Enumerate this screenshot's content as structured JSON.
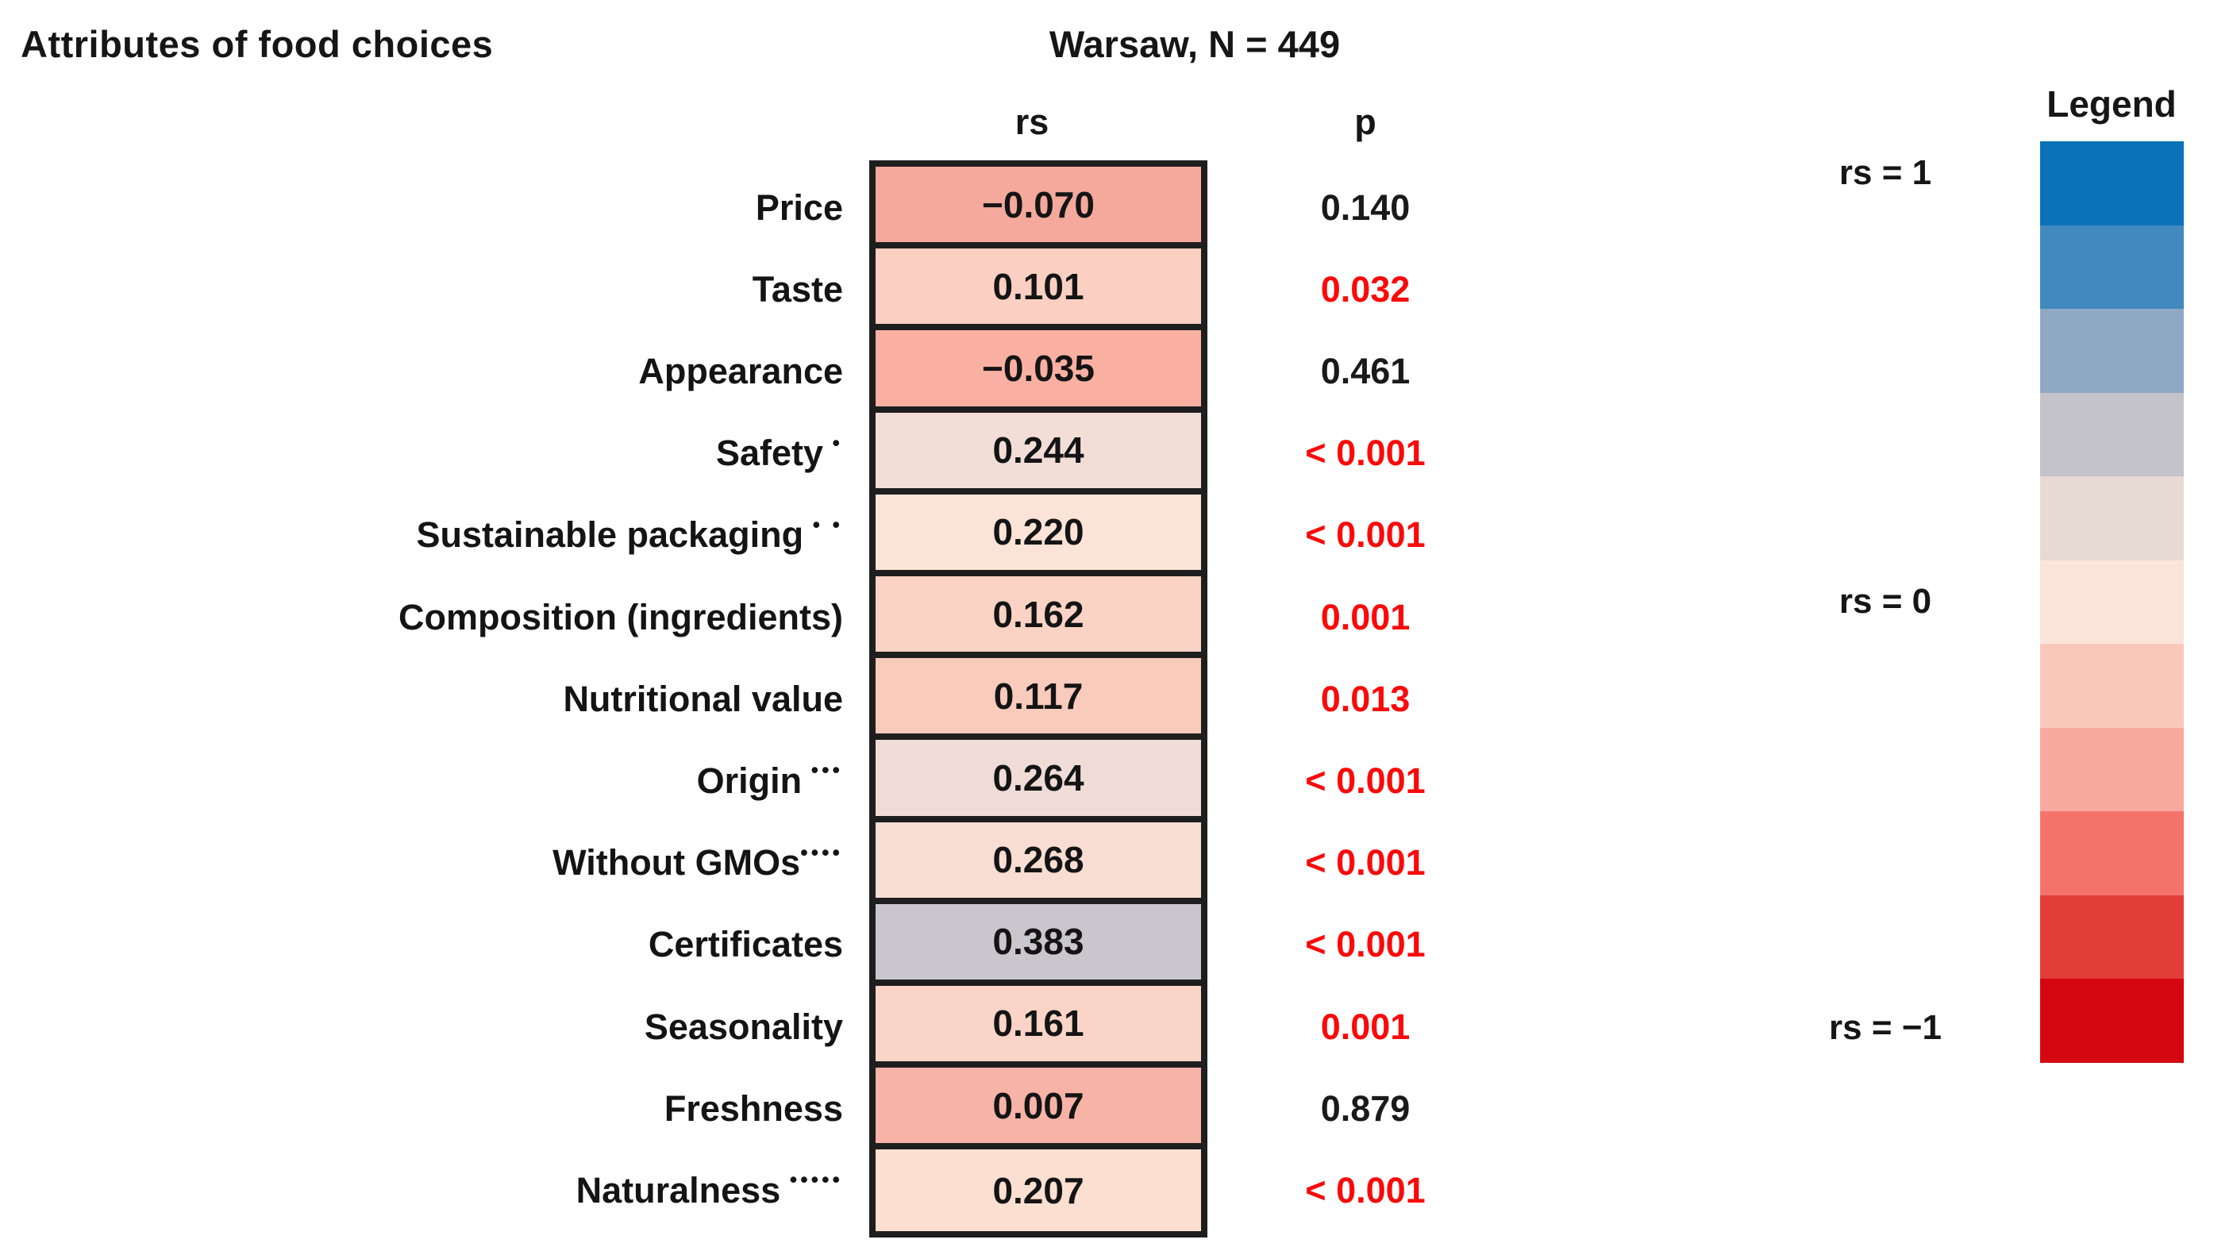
{
  "title": "Attributes of food choices",
  "header": {
    "group": "Warsaw, N = 449",
    "col_rs": "rs",
    "col_p": "p"
  },
  "table": {
    "rows": [
      {
        "label": "Price",
        "marker": "",
        "rs": "−0.070",
        "p": "0.140",
        "significant": false,
        "cell_color": "#F4A99C"
      },
      {
        "label": "Taste",
        "marker": "",
        "rs": "0.101",
        "p": "0.032",
        "significant": true,
        "cell_color": "#FBCFC2"
      },
      {
        "label": "Appearance",
        "marker": "",
        "rs": "−0.035",
        "p": "0.461",
        "significant": false,
        "cell_color": "#F9B0A3"
      },
      {
        "label": "Safety",
        "marker": " •",
        "rs": "0.244",
        "p": "< 0.001",
        "significant": true,
        "cell_color": "#F3DED7"
      },
      {
        "label": "Sustainable packaging",
        "marker": " • •",
        "rs": "0.220",
        "p": "< 0.001",
        "significant": true,
        "cell_color": "#FBE3D7"
      },
      {
        "label": "Composition (ingredients)",
        "marker": "",
        "rs": "0.162",
        "p": "0.001",
        "significant": true,
        "cell_color": "#FAD3C5"
      },
      {
        "label": "Nutritional value",
        "marker": "",
        "rs": "0.117",
        "p": "0.013",
        "significant": true,
        "cell_color": "#F9CBBC"
      },
      {
        "label": "Origin",
        "marker": " •••",
        "rs": "0.264",
        "p": "< 0.001",
        "significant": true,
        "cell_color": "#EFDCD6"
      },
      {
        "label": "Without GMOs",
        "marker": "••••",
        "rs": "0.268",
        "p": "< 0.001",
        "significant": true,
        "cell_color": "#F8DDD3"
      },
      {
        "label": "Certificates",
        "marker": "",
        "rs": "0.383",
        "p": "< 0.001",
        "significant": true,
        "cell_color": "#C9C6CD"
      },
      {
        "label": "Seasonality",
        "marker": "",
        "rs": "0.161",
        "p": "0.001",
        "significant": true,
        "cell_color": "#FAD4C7"
      },
      {
        "label": "Freshness",
        "marker": "",
        "rs": "0.007",
        "p": "0.879",
        "significant": false,
        "cell_color": "#F7B3A6"
      },
      {
        "label": "Naturalness",
        "marker": " •••••",
        "rs": "0.207",
        "p": "< 0.001",
        "significant": true,
        "cell_color": "#FBDFD1"
      }
    ]
  },
  "legend": {
    "title": "Legend",
    "scale_labels": [
      "rs = 1",
      "rs = 0",
      "rs = −1"
    ],
    "colors": [
      "#0B72B8",
      "#4189BF",
      "#8FA9C4",
      "#C4C3CB",
      "#E7DAD4",
      "#FCE4DA",
      "#FAC8BA",
      "#F9A99D",
      "#F4746C",
      "#E23D37",
      "#D40711"
    ]
  },
  "colors": {
    "significant_p": "#FA0A0A",
    "text": "#161616",
    "table_border": "#1E1E1E",
    "background": "#FFFFFF"
  },
  "chart_data": {
    "type": "heatmap",
    "title": "Attributes of food choices",
    "group": "Warsaw, N = 449",
    "columns": [
      "rs",
      "p"
    ],
    "categories": [
      "Price",
      "Taste",
      "Appearance",
      "Safety",
      "Sustainable packaging",
      "Composition (ingredients)",
      "Nutritional value",
      "Origin",
      "Without GMOs",
      "Certificates",
      "Seasonality",
      "Freshness",
      "Naturalness"
    ],
    "footnote_marker_counts": [
      0,
      0,
      0,
      1,
      2,
      0,
      0,
      3,
      4,
      0,
      0,
      0,
      5
    ],
    "rs_values": [
      -0.07,
      0.101,
      -0.035,
      0.244,
      0.22,
      0.162,
      0.117,
      0.264,
      0.268,
      0.383,
      0.161,
      0.007,
      0.207
    ],
    "p_values": [
      "0.140",
      "0.032",
      "0.461",
      "<0.001",
      "<0.001",
      "0.001",
      "0.013",
      "<0.001",
      "<0.001",
      "<0.001",
      "0.001",
      "0.879",
      "<0.001"
    ],
    "significant": [
      false,
      true,
      false,
      true,
      true,
      true,
      true,
      true,
      true,
      true,
      true,
      false,
      true
    ],
    "colorscale": {
      "max_label": "rs = 1",
      "mid_label": "rs = 0",
      "min_label": "rs = −1",
      "steps": 11,
      "orientation": "vertical",
      "legend_position": "right",
      "top_color": "#0B72B8",
      "mid_color": "#FCE4DA",
      "bottom_color": "#D40711"
    }
  }
}
